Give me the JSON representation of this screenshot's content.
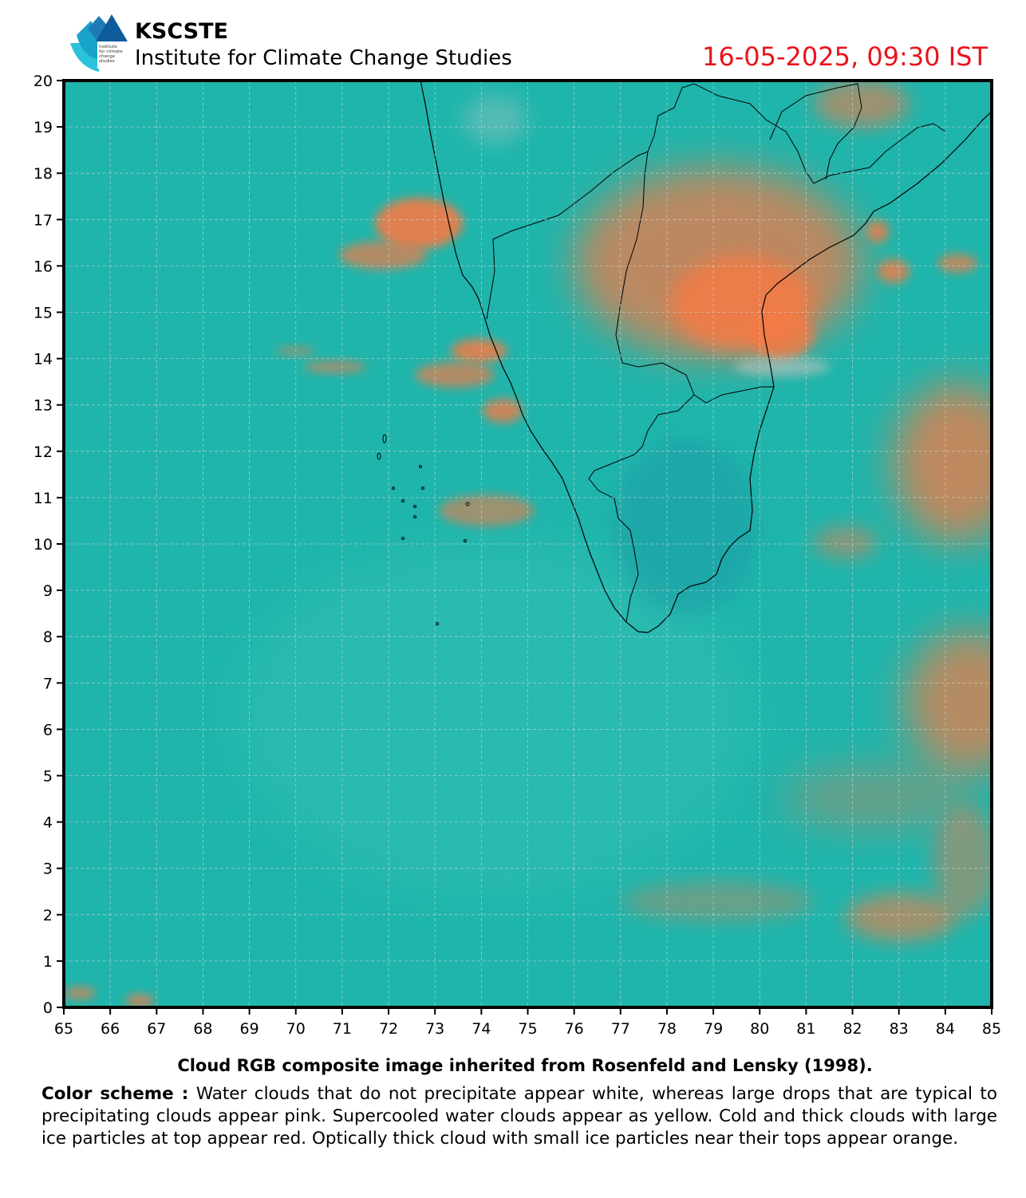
{
  "header": {
    "org_name": "KSCSTE",
    "org_subtitle": "Institute for Climate Change Studies",
    "logo_text": [
      "institute",
      "for climate",
      "change",
      "studies"
    ],
    "timestamp": "16-05-2025, 09:30 IST"
  },
  "map": {
    "lon_ticks": [
      "65",
      "66",
      "67",
      "68",
      "69",
      "70",
      "71",
      "72",
      "73",
      "74",
      "75",
      "76",
      "77",
      "78",
      "79",
      "80",
      "81",
      "82",
      "83",
      "84",
      "85"
    ],
    "lat_ticks": [
      "0",
      "1",
      "2",
      "3",
      "4",
      "5",
      "6",
      "7",
      "8",
      "9",
      "10",
      "11",
      "12",
      "13",
      "14",
      "15",
      "16",
      "17",
      "18",
      "19",
      "20"
    ],
    "lon_range": [
      65,
      85
    ],
    "lat_range": [
      0,
      20
    ],
    "background_color": "#1fb5ac",
    "cloud_color": "#f57a45"
  },
  "caption": "Cloud RGB composite image inherited from Rosenfeld and Lensky (1998).",
  "color_scheme": {
    "label": "Color scheme :",
    "text": "Water  clouds  that do not precipitate appear  white, whereas large drops that are typical  to  precipitating  clouds  appear  pink.  Supercooled water  clouds appear as yellow. Cold and thick clouds with large ice particles at top appear red. Optically thick cloud with small ice particles near their tops appear orange."
  }
}
